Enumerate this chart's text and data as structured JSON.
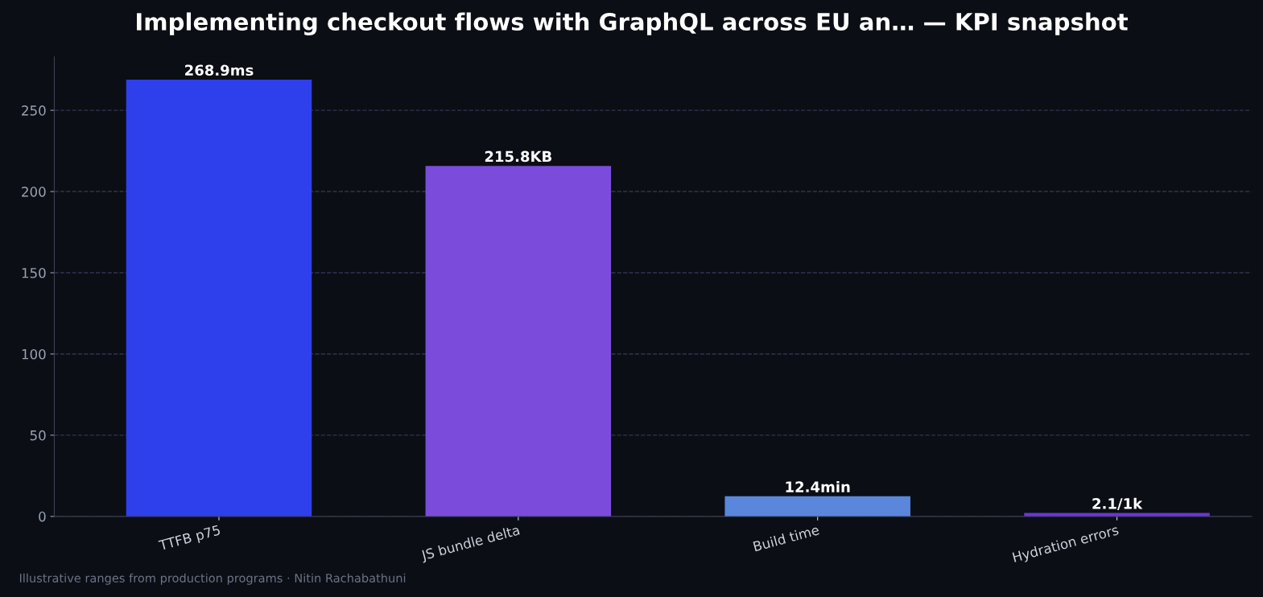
{
  "chart_data": {
    "type": "bar",
    "title": "Implementing checkout flows with GraphQL across EU an… — KPI snapshot",
    "categories": [
      "TTFB p75",
      "JS bundle delta",
      "Build time",
      "Hydration errors"
    ],
    "values": [
      268.9,
      215.8,
      12.4,
      2.1
    ],
    "colors": [
      "#2e40ec",
      "#7b4cdb",
      "#5a86dc",
      "#6a36d4"
    ],
    "value_labels": [
      "268.9ms",
      "215.8KB",
      "12.4min",
      "2.1/1k"
    ],
    "ylim": [
      0,
      283
    ],
    "yticks": [
      0,
      50,
      100,
      150,
      200,
      250
    ],
    "grid": "y",
    "annotations": [
      "Illustrative ranges from production programs · Nitin Rachabathuni"
    ]
  }
}
